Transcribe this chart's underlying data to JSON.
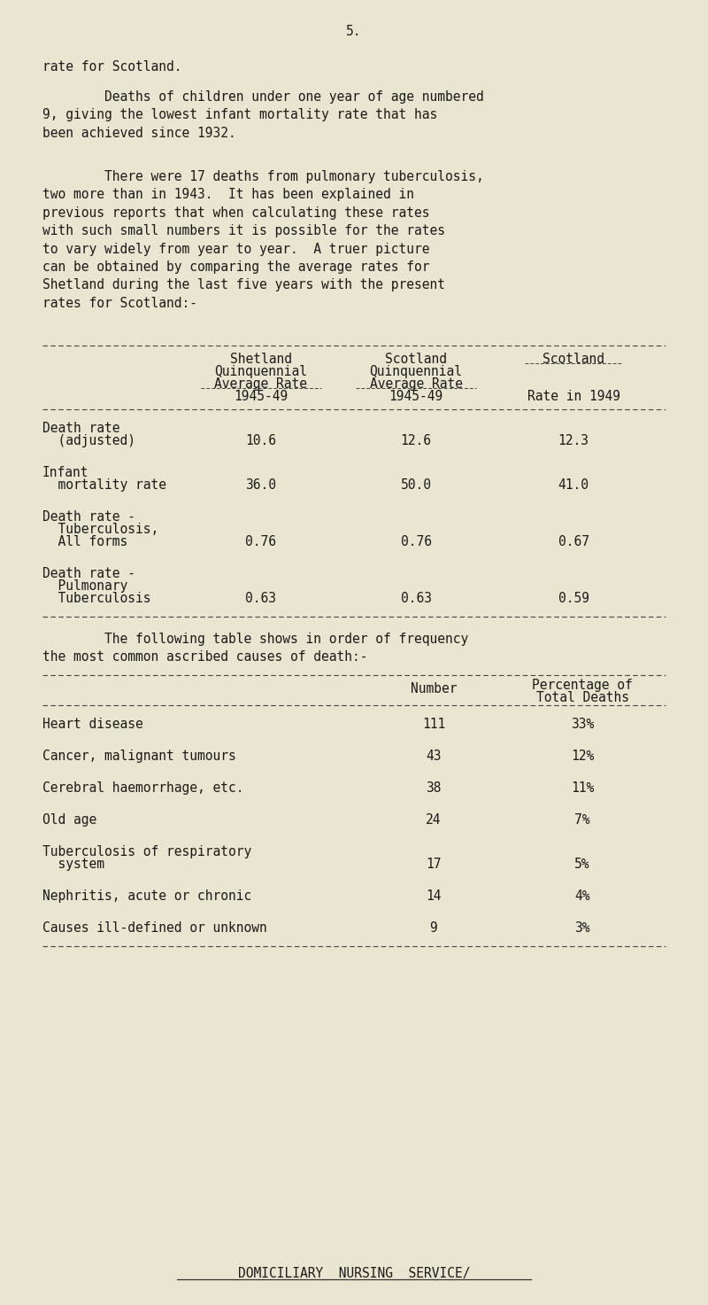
{
  "bg_color": "#e8e6d0",
  "text_color": "#1a1a1a",
  "page_number": "5.",
  "para1": "rate for Scotland.",
  "para2_indent": "        Deaths of children under one year of age numbered\n9, giving the lowest infant mortality rate that has\nbeen achieved since 1932.",
  "para3_indent": "        There were 17 deaths from pulmonary tuberculosis,\ntwo more than in 1943.  It has been explained in\nprevious reports that when calculating these rates\nwith such small numbers it is possible for the rates\nto vary widely from year to year.  A truer picture\ncan be obtained by comparing the average rates for\nShetland during the last five years with the present\nrates for Scotland:-",
  "table1_header_lines": [
    [
      "Shetland",
      "Scotland",
      "Scotland"
    ],
    [
      "Quinquennial",
      "Quinquennial",
      ""
    ],
    [
      "Average Rate",
      "Average Rate",
      ""
    ],
    [
      "1945-49",
      "1945-49",
      "Rate in 1949"
    ]
  ],
  "table1_rows": [
    {
      "lines": [
        "Death rate",
        "  (adjusted)"
      ],
      "values": [
        "10.6",
        "12.6",
        "12.3"
      ]
    },
    {
      "lines": [
        "Infant",
        "  mortality rate"
      ],
      "values": [
        "36.0",
        "50.0",
        "41.0"
      ]
    },
    {
      "lines": [
        "Death rate -",
        "  Tuberculosis,",
        "  All forms"
      ],
      "values": [
        "0.76",
        "0.76",
        "0.67"
      ]
    },
    {
      "lines": [
        "Death rate -",
        "  Pulmonary",
        "  Tuberculosis"
      ],
      "values": [
        "0.63",
        "0.63",
        "0.59"
      ]
    }
  ],
  "para4": "        The following table shows in order of frequency\nthe most common ascribed causes of death:-",
  "table2_rows": [
    {
      "label": "Heart disease",
      "number": "111",
      "pct": "33%"
    },
    {
      "label": "Cancer, malignant tumours",
      "number": "43",
      "pct": "12%"
    },
    {
      "label": "Cerebral haemorrhage, etc.",
      "number": "38",
      "pct": "11%"
    },
    {
      "label": "Old age",
      "number": "24",
      "pct": "7%"
    },
    {
      "label": "Tuberculosis of respiratory\n  system",
      "number": "17",
      "pct": "5%"
    },
    {
      "label": "Nephritis, acute or chronic",
      "number": "14",
      "pct": "4%"
    },
    {
      "label": "Causes ill-defined or unknown",
      "number": "9",
      "pct": "3%"
    }
  ],
  "footer": "DOMICILIARY  NURSING  SERVICE/"
}
